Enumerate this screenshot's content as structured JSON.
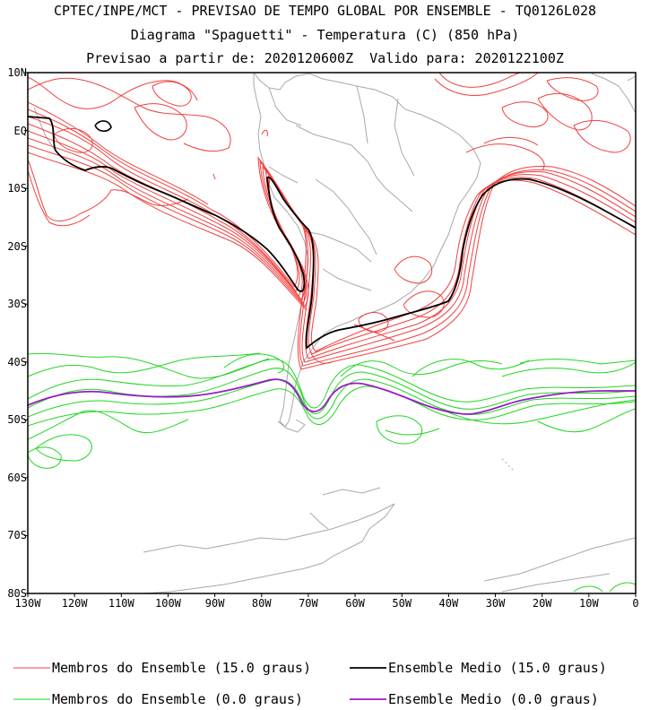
{
  "header": {
    "line1": "CPTEC/INPE/MCT - PREVISAO DE TEMPO GLOBAL POR ENSEMBLE - TQ0126L028",
    "line2": "Diagrama \"Spaguetti\" - Temperatura (C) (850 hPa)",
    "line3": "Previsao a partir de: 2020120600Z  Valido para: 2020122100Z"
  },
  "map": {
    "lat_labels": [
      "10N",
      "EQ",
      "10S",
      "20S",
      "30S",
      "40S",
      "50S",
      "60S",
      "70S",
      "80S"
    ],
    "lon_labels": [
      "130W",
      "120W",
      "110W",
      "100W",
      "90W",
      "80W",
      "70W",
      "60W",
      "50W",
      "40W",
      "30W",
      "20W",
      "10W",
      "0"
    ],
    "colors": {
      "members_15": "#f04040",
      "mean_15": "#000000",
      "members_0": "#22d622",
      "mean_0": "#9a1aca",
      "land": "#a8a8a8"
    }
  },
  "legend": {
    "members_15_label": "Membros do Ensemble (15.0 graus)",
    "mean_15_label": "Ensemble Medio (15.0 graus)",
    "members_0_label": "Membros do Ensemble (0.0 graus)",
    "mean_0_label": "Ensemble Medio (0.0 graus)"
  }
}
